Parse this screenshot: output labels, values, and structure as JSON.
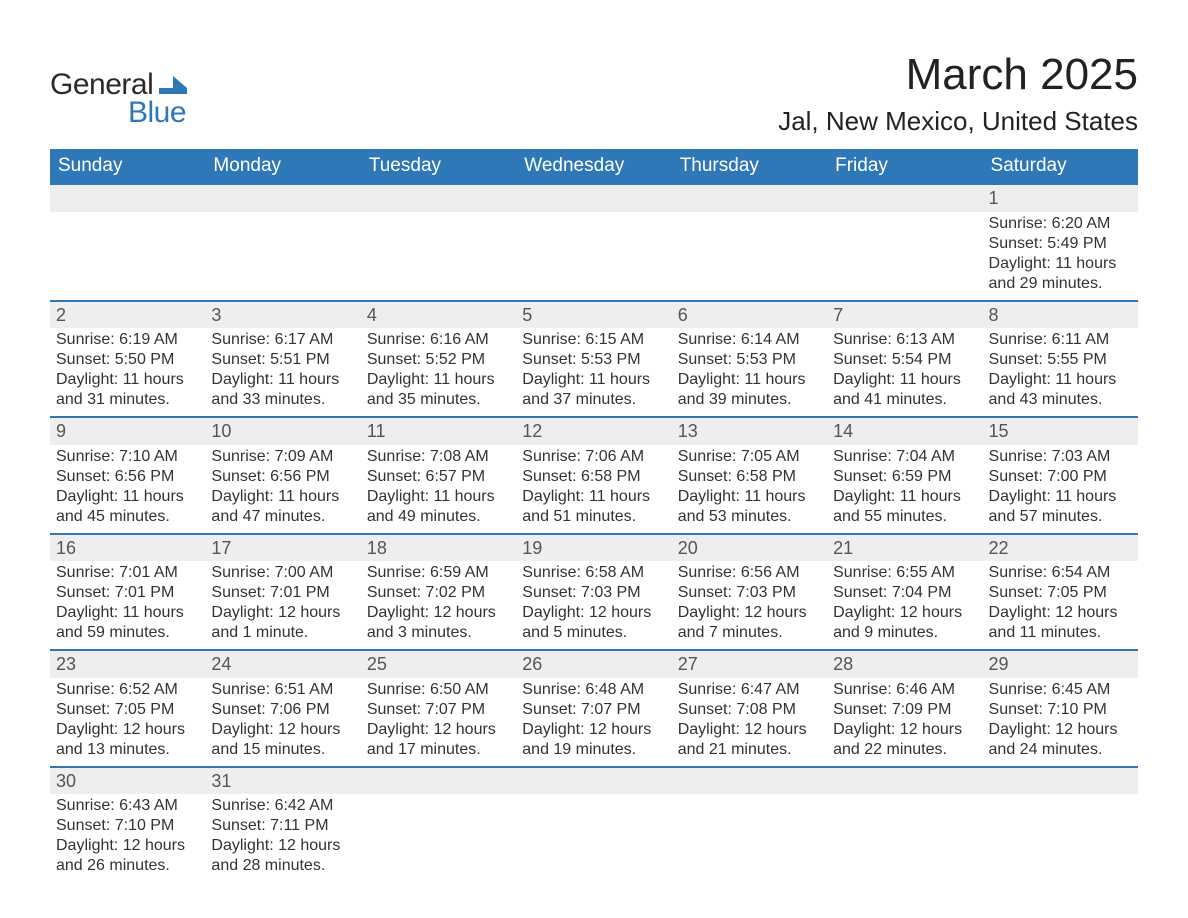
{
  "logo": {
    "word1": "General",
    "word2": "Blue",
    "shape_color": "#2f78b8"
  },
  "title": {
    "month": "March 2025",
    "location": "Jal, New Mexico, United States"
  },
  "style": {
    "header_bg": "#2f78b8",
    "header_fg": "#ffffff",
    "row_sep_color": "#2f78b8",
    "daynum_bg": "#eeeeee",
    "text_color": "#333333",
    "title_fontsize": 44,
    "location_fontsize": 26,
    "header_fontsize": 19,
    "cell_fontsize": 16
  },
  "weekdays": [
    "Sunday",
    "Monday",
    "Tuesday",
    "Wednesday",
    "Thursday",
    "Friday",
    "Saturday"
  ],
  "labels": {
    "sunrise": "Sunrise: ",
    "sunset": "Sunset: ",
    "daylight": "Daylight: "
  },
  "weeks": [
    [
      null,
      null,
      null,
      null,
      null,
      null,
      {
        "n": "1",
        "sr": "6:20 AM",
        "ss": "5:49 PM",
        "dl": "11 hours and 29 minutes."
      }
    ],
    [
      {
        "n": "2",
        "sr": "6:19 AM",
        "ss": "5:50 PM",
        "dl": "11 hours and 31 minutes."
      },
      {
        "n": "3",
        "sr": "6:17 AM",
        "ss": "5:51 PM",
        "dl": "11 hours and 33 minutes."
      },
      {
        "n": "4",
        "sr": "6:16 AM",
        "ss": "5:52 PM",
        "dl": "11 hours and 35 minutes."
      },
      {
        "n": "5",
        "sr": "6:15 AM",
        "ss": "5:53 PM",
        "dl": "11 hours and 37 minutes."
      },
      {
        "n": "6",
        "sr": "6:14 AM",
        "ss": "5:53 PM",
        "dl": "11 hours and 39 minutes."
      },
      {
        "n": "7",
        "sr": "6:13 AM",
        "ss": "5:54 PM",
        "dl": "11 hours and 41 minutes."
      },
      {
        "n": "8",
        "sr": "6:11 AM",
        "ss": "5:55 PM",
        "dl": "11 hours and 43 minutes."
      }
    ],
    [
      {
        "n": "9",
        "sr": "7:10 AM",
        "ss": "6:56 PM",
        "dl": "11 hours and 45 minutes."
      },
      {
        "n": "10",
        "sr": "7:09 AM",
        "ss": "6:56 PM",
        "dl": "11 hours and 47 minutes."
      },
      {
        "n": "11",
        "sr": "7:08 AM",
        "ss": "6:57 PM",
        "dl": "11 hours and 49 minutes."
      },
      {
        "n": "12",
        "sr": "7:06 AM",
        "ss": "6:58 PM",
        "dl": "11 hours and 51 minutes."
      },
      {
        "n": "13",
        "sr": "7:05 AM",
        "ss": "6:58 PM",
        "dl": "11 hours and 53 minutes."
      },
      {
        "n": "14",
        "sr": "7:04 AM",
        "ss": "6:59 PM",
        "dl": "11 hours and 55 minutes."
      },
      {
        "n": "15",
        "sr": "7:03 AM",
        "ss": "7:00 PM",
        "dl": "11 hours and 57 minutes."
      }
    ],
    [
      {
        "n": "16",
        "sr": "7:01 AM",
        "ss": "7:01 PM",
        "dl": "11 hours and 59 minutes."
      },
      {
        "n": "17",
        "sr": "7:00 AM",
        "ss": "7:01 PM",
        "dl": "12 hours and 1 minute."
      },
      {
        "n": "18",
        "sr": "6:59 AM",
        "ss": "7:02 PM",
        "dl": "12 hours and 3 minutes."
      },
      {
        "n": "19",
        "sr": "6:58 AM",
        "ss": "7:03 PM",
        "dl": "12 hours and 5 minutes."
      },
      {
        "n": "20",
        "sr": "6:56 AM",
        "ss": "7:03 PM",
        "dl": "12 hours and 7 minutes."
      },
      {
        "n": "21",
        "sr": "6:55 AM",
        "ss": "7:04 PM",
        "dl": "12 hours and 9 minutes."
      },
      {
        "n": "22",
        "sr": "6:54 AM",
        "ss": "7:05 PM",
        "dl": "12 hours and 11 minutes."
      }
    ],
    [
      {
        "n": "23",
        "sr": "6:52 AM",
        "ss": "7:05 PM",
        "dl": "12 hours and 13 minutes."
      },
      {
        "n": "24",
        "sr": "6:51 AM",
        "ss": "7:06 PM",
        "dl": "12 hours and 15 minutes."
      },
      {
        "n": "25",
        "sr": "6:50 AM",
        "ss": "7:07 PM",
        "dl": "12 hours and 17 minutes."
      },
      {
        "n": "26",
        "sr": "6:48 AM",
        "ss": "7:07 PM",
        "dl": "12 hours and 19 minutes."
      },
      {
        "n": "27",
        "sr": "6:47 AM",
        "ss": "7:08 PM",
        "dl": "12 hours and 21 minutes."
      },
      {
        "n": "28",
        "sr": "6:46 AM",
        "ss": "7:09 PM",
        "dl": "12 hours and 22 minutes."
      },
      {
        "n": "29",
        "sr": "6:45 AM",
        "ss": "7:10 PM",
        "dl": "12 hours and 24 minutes."
      }
    ],
    [
      {
        "n": "30",
        "sr": "6:43 AM",
        "ss": "7:10 PM",
        "dl": "12 hours and 26 minutes."
      },
      {
        "n": "31",
        "sr": "6:42 AM",
        "ss": "7:11 PM",
        "dl": "12 hours and 28 minutes."
      },
      null,
      null,
      null,
      null,
      null
    ]
  ]
}
